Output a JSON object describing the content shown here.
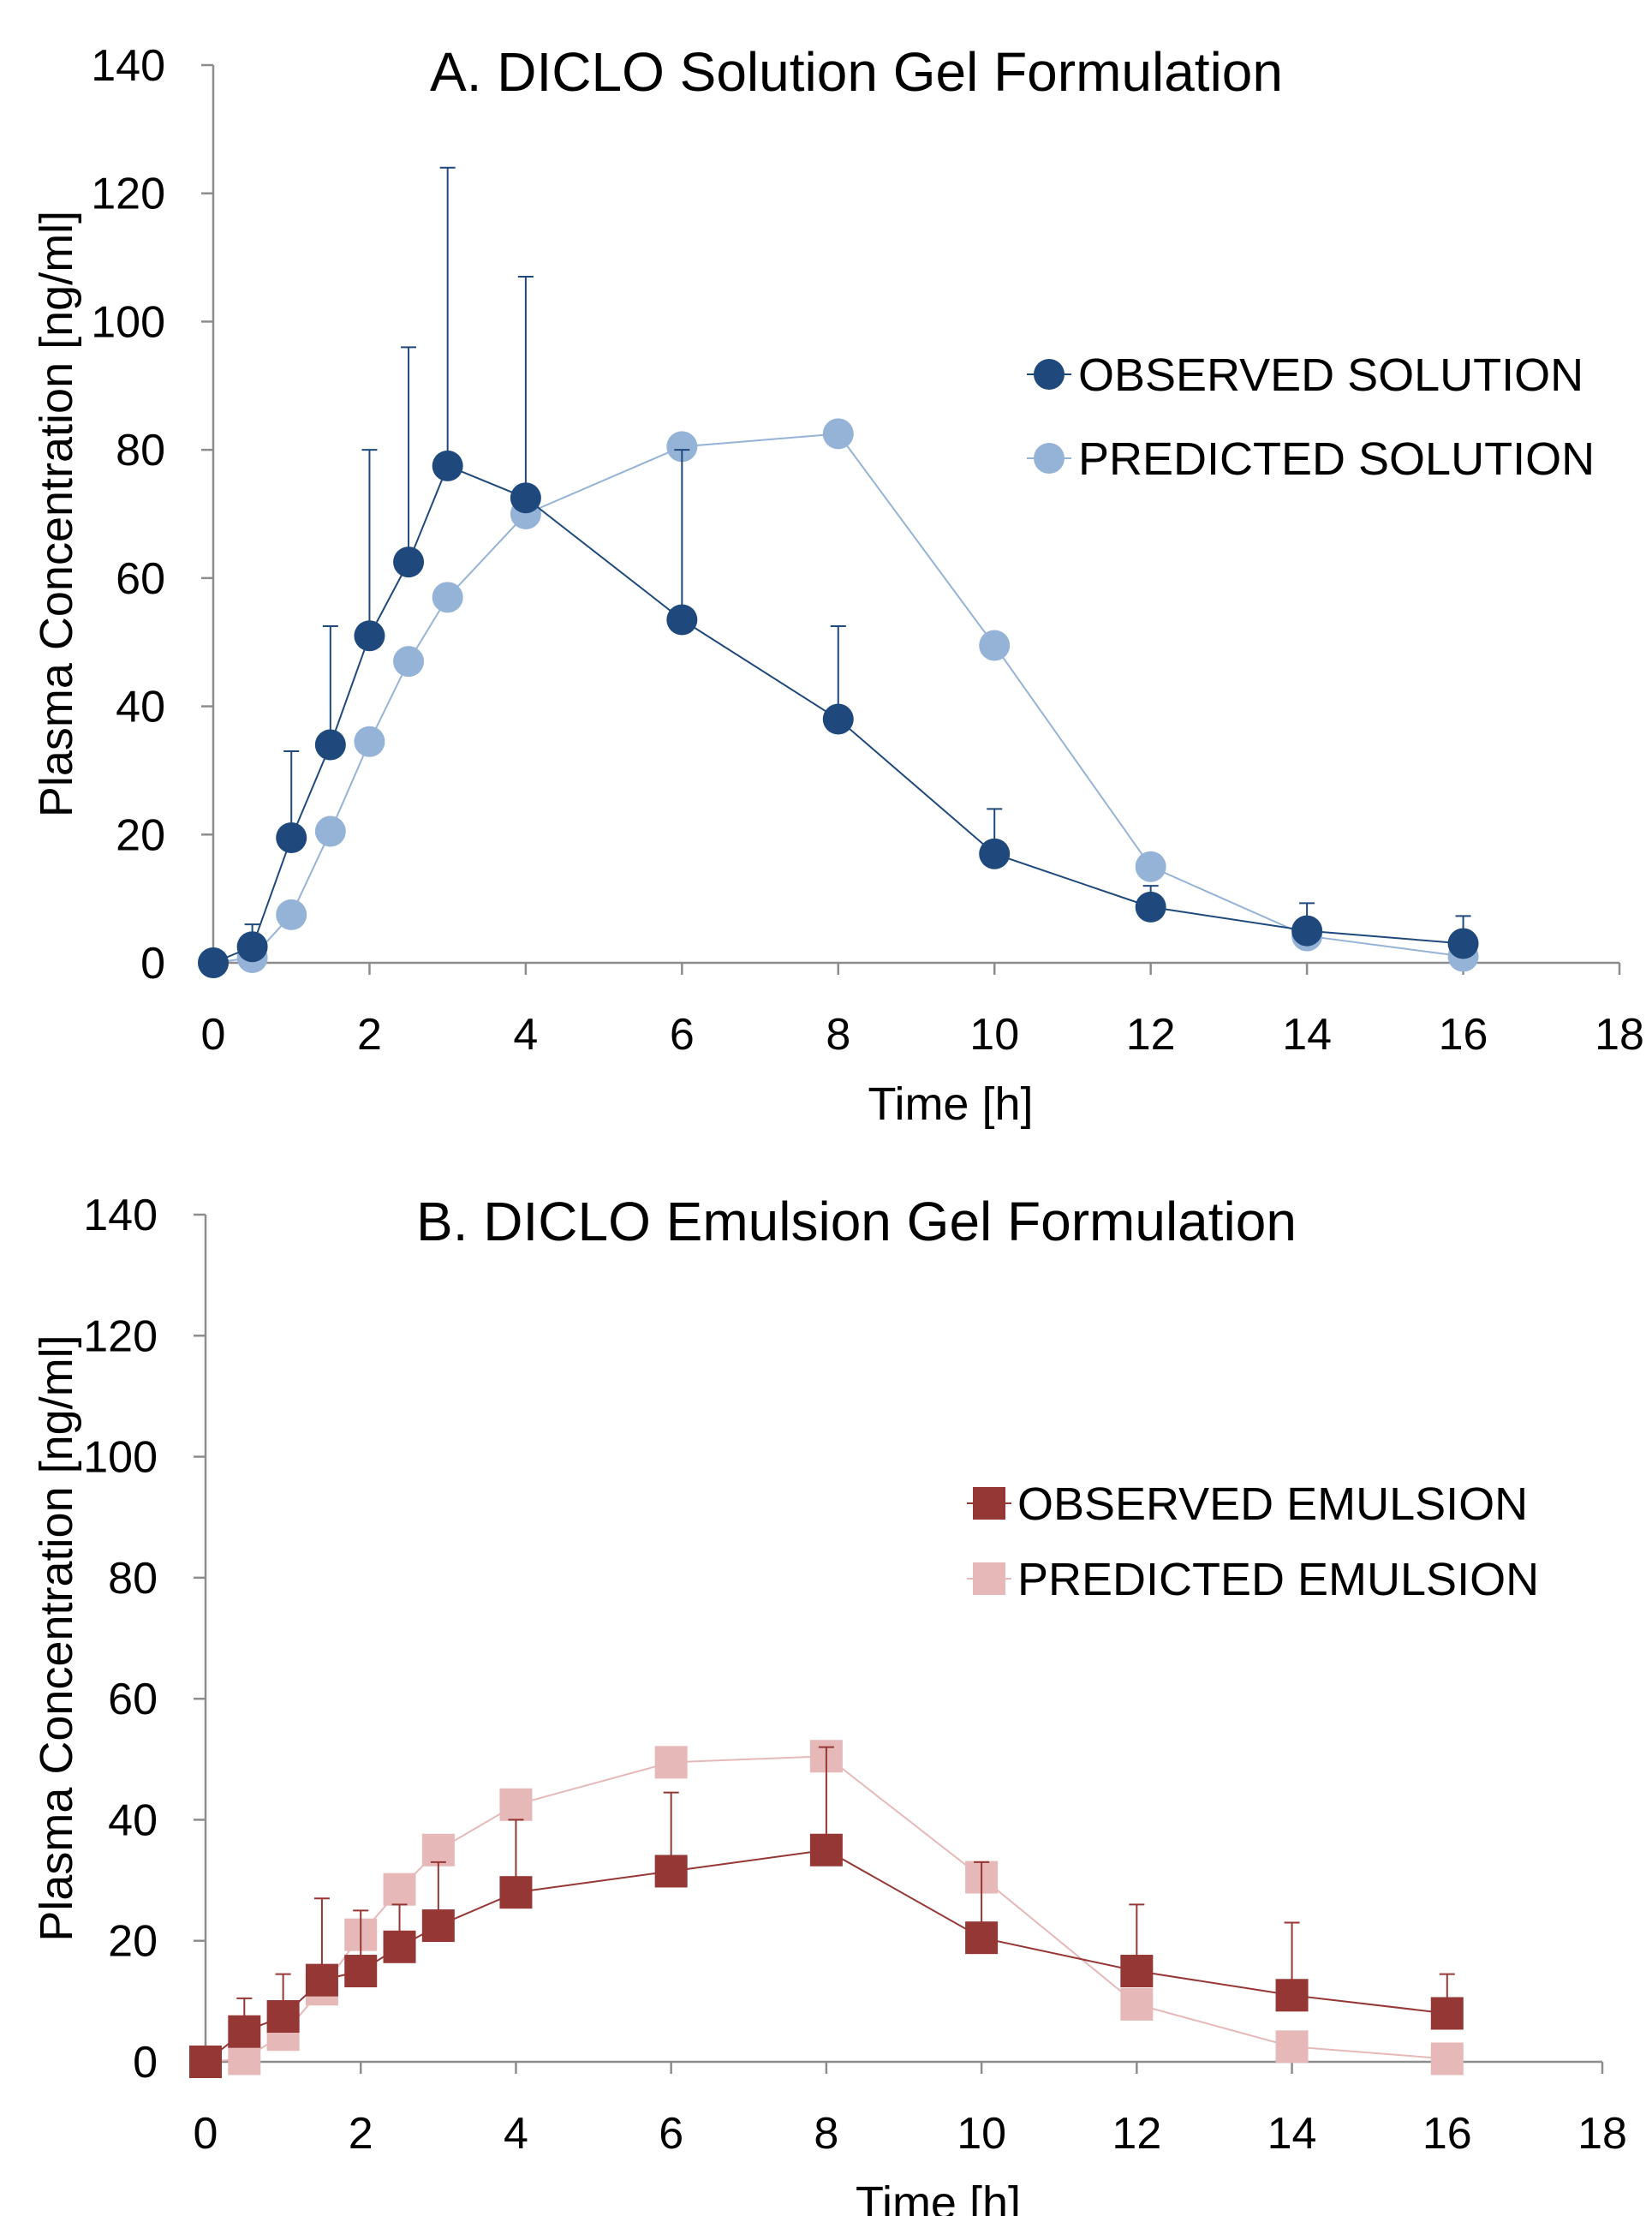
{
  "chart_data": [
    {
      "type": "scatter",
      "title": "A. DICLO Solution Gel Formulation",
      "xlabel": "Time [h]",
      "ylabel": "Plasma Concentration [ng/ml]",
      "xlim": [
        0,
        18
      ],
      "ylim": [
        0,
        140
      ],
      "xticks": [
        0,
        2,
        4,
        6,
        8,
        10,
        12,
        14,
        16,
        18
      ],
      "yticks": [
        0,
        20,
        40,
        60,
        80,
        100,
        120,
        140
      ],
      "grid": false,
      "legend_position": "right",
      "marker": "circle",
      "series": [
        {
          "name": "OBSERVED SOLUTION",
          "color": "#1f497d",
          "x": [
            0,
            0.5,
            1,
            1.5,
            2,
            2.5,
            3,
            4,
            6,
            8,
            10,
            12,
            14,
            16
          ],
          "y": [
            0,
            2.5,
            19.5,
            34,
            51,
            62.5,
            77.5,
            72.5,
            53.5,
            38,
            17,
            8.7,
            5,
            3
          ],
          "error_upper": [
            0,
            6,
            33,
            52.5,
            80,
            96,
            124,
            107,
            80,
            52.5,
            24,
            12,
            9.3,
            7.3
          ]
        },
        {
          "name": "PREDICTED SOLUTION",
          "color": "#95b3d7",
          "x": [
            0,
            0.5,
            1,
            1.5,
            2,
            2.5,
            3,
            4,
            6,
            8,
            10,
            12,
            14,
            16
          ],
          "y": [
            0,
            0.8,
            7.5,
            20.5,
            34.5,
            47,
            57,
            70,
            80.5,
            82.5,
            49.5,
            15,
            4.2,
            1
          ]
        }
      ]
    },
    {
      "type": "scatter",
      "title": "B. DICLO Emulsion Gel Formulation",
      "xlabel": "Time [h]",
      "ylabel": "Plasma Concentration [ng/ml]",
      "xlim": [
        0,
        18
      ],
      "ylim": [
        0,
        140
      ],
      "xticks": [
        0,
        2,
        4,
        6,
        8,
        10,
        12,
        14,
        16,
        18
      ],
      "yticks": [
        0,
        20,
        40,
        60,
        80,
        100,
        120,
        140
      ],
      "grid": false,
      "legend_position": "right",
      "marker": "square",
      "series": [
        {
          "name": "OBSERVED EMULSION",
          "color": "#953735",
          "x": [
            0,
            0.5,
            1,
            1.5,
            2,
            2.5,
            3,
            4,
            6,
            8,
            10,
            12,
            14,
            16
          ],
          "y": [
            0,
            5,
            7.5,
            13.5,
            15,
            19,
            22.5,
            28,
            31.5,
            35,
            20.5,
            15,
            11,
            8
          ],
          "error_upper": [
            0,
            10.5,
            14.5,
            27,
            25,
            26,
            33,
            40,
            44.5,
            52,
            33,
            26,
            23,
            14.5
          ]
        },
        {
          "name": "PREDICTED EMULSION",
          "color": "#e6b9b8",
          "x": [
            0,
            0.5,
            1,
            1.5,
            2,
            2.5,
            3,
            4,
            6,
            8,
            10,
            12,
            14,
            16
          ],
          "y": [
            0,
            0.5,
            4.5,
            12,
            21,
            28.5,
            35,
            42.5,
            49.5,
            50.5,
            30.5,
            9.5,
            2.5,
            0.5
          ]
        }
      ]
    }
  ]
}
